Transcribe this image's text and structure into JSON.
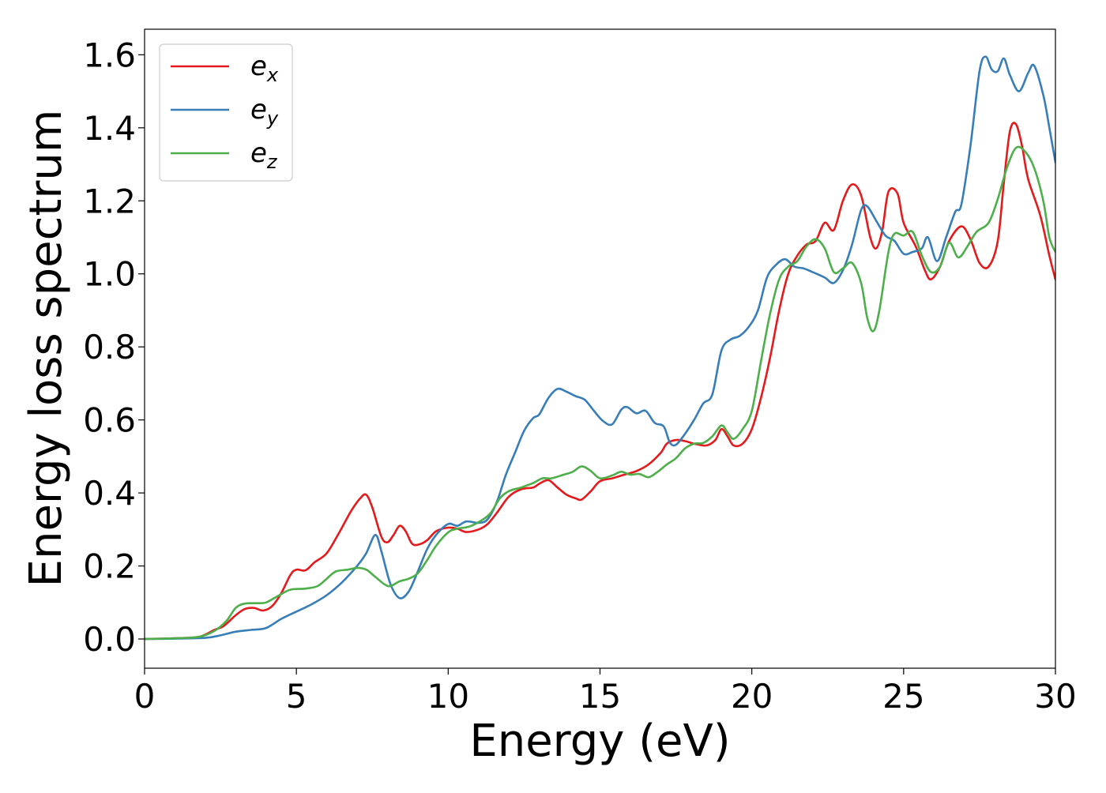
{
  "chart_data": {
    "type": "line",
    "title": "",
    "xlabel": "Energy (eV)",
    "ylabel": "Energy loss spectrum",
    "xlim": [
      0,
      30
    ],
    "ylim": [
      -0.08,
      1.67
    ],
    "xticks": [
      0,
      5,
      10,
      15,
      20,
      25,
      30
    ],
    "xtick_labels": [
      "0",
      "5",
      "10",
      "15",
      "20",
      "25",
      "30"
    ],
    "yticks": [
      0.0,
      0.2,
      0.4,
      0.6,
      0.8,
      1.0,
      1.2,
      1.4,
      1.6
    ],
    "ytick_labels": [
      "0.0",
      "0.2",
      "0.4",
      "0.6",
      "0.8",
      "1.0",
      "1.2",
      "1.4",
      "1.6"
    ],
    "grid": false,
    "legend_position": "top-left",
    "series": [
      {
        "name": "e",
        "subscript": "x",
        "color": "#e41a1c",
        "points": [
          [
            0,
            0
          ],
          [
            1,
            0.002
          ],
          [
            1.8,
            0.006
          ],
          [
            2.3,
            0.025
          ],
          [
            2.6,
            0.035
          ],
          [
            3.0,
            0.065
          ],
          [
            3.3,
            0.082
          ],
          [
            3.6,
            0.085
          ],
          [
            3.9,
            0.078
          ],
          [
            4.2,
            0.09
          ],
          [
            4.5,
            0.125
          ],
          [
            4.8,
            0.175
          ],
          [
            5.0,
            0.19
          ],
          [
            5.3,
            0.188
          ],
          [
            5.6,
            0.21
          ],
          [
            6.0,
            0.235
          ],
          [
            6.4,
            0.29
          ],
          [
            6.8,
            0.35
          ],
          [
            7.1,
            0.385
          ],
          [
            7.3,
            0.395
          ],
          [
            7.5,
            0.36
          ],
          [
            7.8,
            0.28
          ],
          [
            8.0,
            0.265
          ],
          [
            8.2,
            0.285
          ],
          [
            8.4,
            0.31
          ],
          [
            8.6,
            0.295
          ],
          [
            8.8,
            0.262
          ],
          [
            9.0,
            0.258
          ],
          [
            9.3,
            0.27
          ],
          [
            9.6,
            0.295
          ],
          [
            10.0,
            0.305
          ],
          [
            10.3,
            0.302
          ],
          [
            10.6,
            0.293
          ],
          [
            11.0,
            0.3
          ],
          [
            11.3,
            0.315
          ],
          [
            11.6,
            0.345
          ],
          [
            12.0,
            0.39
          ],
          [
            12.4,
            0.41
          ],
          [
            12.8,
            0.415
          ],
          [
            13.0,
            0.425
          ],
          [
            13.3,
            0.435
          ],
          [
            13.6,
            0.415
          ],
          [
            13.9,
            0.395
          ],
          [
            14.2,
            0.385
          ],
          [
            14.4,
            0.382
          ],
          [
            14.7,
            0.405
          ],
          [
            15.0,
            0.432
          ],
          [
            15.4,
            0.44
          ],
          [
            15.8,
            0.45
          ],
          [
            16.2,
            0.46
          ],
          [
            16.6,
            0.478
          ],
          [
            17.0,
            0.51
          ],
          [
            17.2,
            0.535
          ],
          [
            17.5,
            0.545
          ],
          [
            17.8,
            0.542
          ],
          [
            18.1,
            0.535
          ],
          [
            18.5,
            0.53
          ],
          [
            18.8,
            0.545
          ],
          [
            19.0,
            0.575
          ],
          [
            19.2,
            0.555
          ],
          [
            19.4,
            0.53
          ],
          [
            19.7,
            0.535
          ],
          [
            20.0,
            0.575
          ],
          [
            20.3,
            0.66
          ],
          [
            20.6,
            0.77
          ],
          [
            20.9,
            0.9
          ],
          [
            21.2,
            1.0
          ],
          [
            21.5,
            1.05
          ],
          [
            21.8,
            1.08
          ],
          [
            22.1,
            1.09
          ],
          [
            22.4,
            1.14
          ],
          [
            22.7,
            1.12
          ],
          [
            23.0,
            1.2
          ],
          [
            23.3,
            1.245
          ],
          [
            23.6,
            1.215
          ],
          [
            23.9,
            1.1
          ],
          [
            24.1,
            1.07
          ],
          [
            24.3,
            1.12
          ],
          [
            24.5,
            1.225
          ],
          [
            24.8,
            1.22
          ],
          [
            25.0,
            1.14
          ],
          [
            25.4,
            1.075
          ],
          [
            25.7,
            1.01
          ],
          [
            25.9,
            0.985
          ],
          [
            26.2,
            1.02
          ],
          [
            26.5,
            1.09
          ],
          [
            26.9,
            1.13
          ],
          [
            27.2,
            1.095
          ],
          [
            27.5,
            1.03
          ],
          [
            27.8,
            1.02
          ],
          [
            28.1,
            1.09
          ],
          [
            28.3,
            1.25
          ],
          [
            28.5,
            1.39
          ],
          [
            28.7,
            1.41
          ],
          [
            28.9,
            1.35
          ],
          [
            29.1,
            1.26
          ],
          [
            29.5,
            1.16
          ],
          [
            29.8,
            1.05
          ],
          [
            30,
            0.985
          ]
        ]
      },
      {
        "name": "e",
        "subscript": "y",
        "color": "#377eb8",
        "points": [
          [
            0,
            0
          ],
          [
            1,
            0.001
          ],
          [
            2,
            0.003
          ],
          [
            2.5,
            0.01
          ],
          [
            3.0,
            0.02
          ],
          [
            3.5,
            0.025
          ],
          [
            4.0,
            0.03
          ],
          [
            4.5,
            0.055
          ],
          [
            5.0,
            0.075
          ],
          [
            5.5,
            0.095
          ],
          [
            6.0,
            0.12
          ],
          [
            6.5,
            0.155
          ],
          [
            7.0,
            0.2
          ],
          [
            7.3,
            0.235
          ],
          [
            7.6,
            0.285
          ],
          [
            7.8,
            0.24
          ],
          [
            8.1,
            0.15
          ],
          [
            8.4,
            0.112
          ],
          [
            8.7,
            0.13
          ],
          [
            9.0,
            0.185
          ],
          [
            9.3,
            0.245
          ],
          [
            9.6,
            0.285
          ],
          [
            10.0,
            0.315
          ],
          [
            10.3,
            0.31
          ],
          [
            10.6,
            0.322
          ],
          [
            11.0,
            0.318
          ],
          [
            11.3,
            0.328
          ],
          [
            11.6,
            0.375
          ],
          [
            11.9,
            0.45
          ],
          [
            12.2,
            0.51
          ],
          [
            12.5,
            0.57
          ],
          [
            12.8,
            0.605
          ],
          [
            13.0,
            0.615
          ],
          [
            13.3,
            0.66
          ],
          [
            13.6,
            0.685
          ],
          [
            13.9,
            0.677
          ],
          [
            14.2,
            0.665
          ],
          [
            14.5,
            0.655
          ],
          [
            14.8,
            0.625
          ],
          [
            15.1,
            0.597
          ],
          [
            15.4,
            0.588
          ],
          [
            15.7,
            0.628
          ],
          [
            15.9,
            0.635
          ],
          [
            16.2,
            0.618
          ],
          [
            16.5,
            0.625
          ],
          [
            16.8,
            0.592
          ],
          [
            17.1,
            0.582
          ],
          [
            17.3,
            0.538
          ],
          [
            17.5,
            0.532
          ],
          [
            17.8,
            0.562
          ],
          [
            18.1,
            0.6
          ],
          [
            18.4,
            0.645
          ],
          [
            18.7,
            0.67
          ],
          [
            19.0,
            0.79
          ],
          [
            19.3,
            0.82
          ],
          [
            19.6,
            0.83
          ],
          [
            19.9,
            0.855
          ],
          [
            20.2,
            0.9
          ],
          [
            20.5,
            0.99
          ],
          [
            20.8,
            1.025
          ],
          [
            21.1,
            1.04
          ],
          [
            21.4,
            1.02
          ],
          [
            21.7,
            1.015
          ],
          [
            22.0,
            1.005
          ],
          [
            22.4,
            0.99
          ],
          [
            22.7,
            0.975
          ],
          [
            23.0,
            1.01
          ],
          [
            23.3,
            1.08
          ],
          [
            23.6,
            1.175
          ],
          [
            23.8,
            1.185
          ],
          [
            24.1,
            1.145
          ],
          [
            24.4,
            1.105
          ],
          [
            24.7,
            1.09
          ],
          [
            25.0,
            1.055
          ],
          [
            25.3,
            1.06
          ],
          [
            25.6,
            1.07
          ],
          [
            25.8,
            1.1
          ],
          [
            26.1,
            1.035
          ],
          [
            26.4,
            1.1
          ],
          [
            26.7,
            1.17
          ],
          [
            26.9,
            1.19
          ],
          [
            27.2,
            1.35
          ],
          [
            27.5,
            1.555
          ],
          [
            27.7,
            1.595
          ],
          [
            27.9,
            1.56
          ],
          [
            28.1,
            1.555
          ],
          [
            28.3,
            1.59
          ],
          [
            28.5,
            1.545
          ],
          [
            28.8,
            1.5
          ],
          [
            29.1,
            1.55
          ],
          [
            29.3,
            1.57
          ],
          [
            29.6,
            1.49
          ],
          [
            29.8,
            1.4
          ],
          [
            30,
            1.305
          ]
        ]
      },
      {
        "name": "e",
        "subscript": "z",
        "color": "#4daf4a",
        "points": [
          [
            0,
            0
          ],
          [
            1,
            0.002
          ],
          [
            1.8,
            0.006
          ],
          [
            2.3,
            0.022
          ],
          [
            2.7,
            0.05
          ],
          [
            3.0,
            0.085
          ],
          [
            3.3,
            0.097
          ],
          [
            3.7,
            0.098
          ],
          [
            4.0,
            0.1
          ],
          [
            4.4,
            0.118
          ],
          [
            4.8,
            0.135
          ],
          [
            5.3,
            0.138
          ],
          [
            5.7,
            0.145
          ],
          [
            6.0,
            0.165
          ],
          [
            6.3,
            0.185
          ],
          [
            6.7,
            0.19
          ],
          [
            7.0,
            0.195
          ],
          [
            7.3,
            0.19
          ],
          [
            7.6,
            0.17
          ],
          [
            7.9,
            0.15
          ],
          [
            8.1,
            0.145
          ],
          [
            8.4,
            0.158
          ],
          [
            8.7,
            0.165
          ],
          [
            9.0,
            0.18
          ],
          [
            9.3,
            0.215
          ],
          [
            9.6,
            0.255
          ],
          [
            10.0,
            0.292
          ],
          [
            10.3,
            0.302
          ],
          [
            10.7,
            0.308
          ],
          [
            11.1,
            0.325
          ],
          [
            11.4,
            0.345
          ],
          [
            11.7,
            0.385
          ],
          [
            12.0,
            0.405
          ],
          [
            12.4,
            0.415
          ],
          [
            12.8,
            0.427
          ],
          [
            13.1,
            0.44
          ],
          [
            13.4,
            0.44
          ],
          [
            13.8,
            0.45
          ],
          [
            14.1,
            0.458
          ],
          [
            14.4,
            0.473
          ],
          [
            14.7,
            0.46
          ],
          [
            15.0,
            0.44
          ],
          [
            15.4,
            0.448
          ],
          [
            15.7,
            0.458
          ],
          [
            16.0,
            0.45
          ],
          [
            16.3,
            0.452
          ],
          [
            16.6,
            0.443
          ],
          [
            16.9,
            0.458
          ],
          [
            17.2,
            0.478
          ],
          [
            17.5,
            0.495
          ],
          [
            17.8,
            0.522
          ],
          [
            18.1,
            0.535
          ],
          [
            18.4,
            0.537
          ],
          [
            18.7,
            0.555
          ],
          [
            19.0,
            0.585
          ],
          [
            19.2,
            0.566
          ],
          [
            19.4,
            0.548
          ],
          [
            19.7,
            0.575
          ],
          [
            20.0,
            0.625
          ],
          [
            20.3,
            0.76
          ],
          [
            20.6,
            0.89
          ],
          [
            20.9,
            0.985
          ],
          [
            21.2,
            1.02
          ],
          [
            21.5,
            1.035
          ],
          [
            21.8,
            1.075
          ],
          [
            22.1,
            1.095
          ],
          [
            22.4,
            1.07
          ],
          [
            22.7,
            1.005
          ],
          [
            23.0,
            1.015
          ],
          [
            23.3,
            1.03
          ],
          [
            23.6,
            0.975
          ],
          [
            23.8,
            0.88
          ],
          [
            24.0,
            0.843
          ],
          [
            24.2,
            0.9
          ],
          [
            24.5,
            1.06
          ],
          [
            24.7,
            1.11
          ],
          [
            25.0,
            1.105
          ],
          [
            25.3,
            1.115
          ],
          [
            25.6,
            1.05
          ],
          [
            25.9,
            1.005
          ],
          [
            26.2,
            1.02
          ],
          [
            26.5,
            1.085
          ],
          [
            26.8,
            1.045
          ],
          [
            27.1,
            1.075
          ],
          [
            27.4,
            1.115
          ],
          [
            27.8,
            1.14
          ],
          [
            28.1,
            1.205
          ],
          [
            28.4,
            1.29
          ],
          [
            28.7,
            1.345
          ],
          [
            29.0,
            1.335
          ],
          [
            29.3,
            1.29
          ],
          [
            29.6,
            1.2
          ],
          [
            29.8,
            1.1
          ],
          [
            30,
            1.06
          ]
        ]
      }
    ]
  }
}
